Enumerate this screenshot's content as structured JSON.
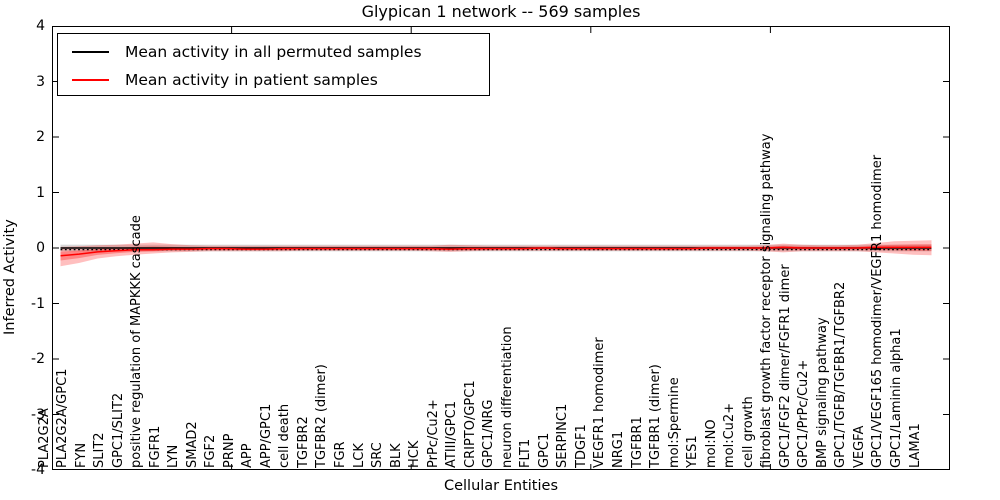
{
  "chart_data": {
    "type": "line",
    "title": "Glypican 1 network -- 569 samples",
    "xlabel": "Cellular Entities",
    "ylabel": "Inferred Activity",
    "ylim": [
      -4,
      4
    ],
    "yticks": [
      4,
      3,
      2,
      1,
      0,
      -1,
      -2,
      -3,
      -4
    ],
    "legend_position": "upper-left",
    "grid": false,
    "layout": {
      "x_tick_labels_inside": true,
      "x_tick_label_rotation": 90,
      "zero_line_dotted": true
    },
    "categories": [
      "PLA2G2A",
      "PLA2G2A/GPC1",
      "FYN",
      "SLIT2",
      "GPC1/SLIT2",
      "positive regulation of MAPKKK cascade",
      "FGFR1",
      "LYN",
      "SMAD2",
      "FGF2",
      "PRNP",
      "APP",
      "APP/GPC1",
      "cell death",
      "TGFBR2",
      "TGFBR2 (dimer)",
      "FGR",
      "LCK",
      "SRC",
      "BLK",
      "HCK",
      "PrPc/Cu2+",
      "ATIII/GPC1",
      "CRIPTO/GPC1",
      "GPC1/NRG",
      "neuron differentiation",
      "FLT1",
      "GPC1",
      "SERPINC1",
      "TDGF1",
      "VEGFR1 homodimer",
      "NRG1",
      "TGFBR1",
      "TGFBR1 (dimer)",
      "mol:Spermine",
      "YES1",
      "mol:NO",
      "mol:Cu2+",
      "cell growth",
      "fibroblast growth factor receptor signaling pathway",
      "GPC1/FGF2 dimer/FGFR1 dimer",
      "GPC1/PrPc/Cu2+",
      "BMP signaling pathway",
      "GPC1/TGFB/TGFBR1/TGFBR2",
      "VEGFA",
      "GPC1/VEGF165 homodimer/VEGFR1 homodimer",
      "GPC1/Laminin alpha1",
      "LAMA1"
    ],
    "legend": [
      {
        "label": "Mean activity in all permuted samples",
        "color": "#000000"
      },
      {
        "label": "Mean activity in patient samples",
        "color": "#ff0000"
      }
    ],
    "series": [
      {
        "name": "Mean activity in all permuted samples",
        "color": "#000000",
        "band_color": "#d4d4d4",
        "band_half_width": 0.06,
        "values": [
          0,
          0,
          0,
          0,
          0,
          0,
          0,
          0,
          0,
          0,
          0,
          0,
          0,
          0,
          0,
          0,
          0,
          0,
          0,
          0,
          0,
          0,
          0,
          0,
          0,
          0,
          0,
          0,
          0,
          0,
          0,
          0,
          0,
          0,
          0,
          0,
          0,
          0,
          0,
          0,
          0,
          0,
          0,
          0,
          0,
          0,
          0,
          0
        ]
      },
      {
        "name": "Mean activity in patient samples",
        "color": "#ff0000",
        "band_color": "#ff0000",
        "values": [
          -0.14,
          -0.11,
          -0.07,
          -0.05,
          -0.03,
          -0.03,
          -0.02,
          -0.02,
          -0.01,
          -0.01,
          -0.02,
          -0.02,
          -0.01,
          -0.01,
          -0.01,
          -0.01,
          -0.01,
          -0.01,
          -0.01,
          -0.01,
          -0.01,
          -0.02,
          -0.01,
          -0.01,
          -0.01,
          -0.01,
          0.0,
          -0.01,
          -0.01,
          -0.01,
          -0.01,
          -0.01,
          -0.01,
          -0.01,
          -0.01,
          0.0,
          0.0,
          0.0,
          0.0,
          0.01,
          0.0,
          0.0,
          0.0,
          0.0,
          0.01,
          0.01,
          0.01,
          0.01
        ],
        "band_upper": [
          0.02,
          0.03,
          0.05,
          0.06,
          0.08,
          0.1,
          0.07,
          0.05,
          0.04,
          0.04,
          0.04,
          0.04,
          0.04,
          0.04,
          0.04,
          0.04,
          0.04,
          0.04,
          0.04,
          0.04,
          0.04,
          0.06,
          0.05,
          0.04,
          0.04,
          0.04,
          0.04,
          0.04,
          0.04,
          0.04,
          0.04,
          0.04,
          0.04,
          0.04,
          0.04,
          0.04,
          0.04,
          0.04,
          0.05,
          0.08,
          0.06,
          0.05,
          0.05,
          0.06,
          0.09,
          0.12,
          0.13,
          0.14
        ],
        "band_lower": [
          -0.33,
          -0.27,
          -0.19,
          -0.15,
          -0.12,
          -0.1,
          -0.08,
          -0.07,
          -0.06,
          -0.06,
          -0.06,
          -0.06,
          -0.06,
          -0.05,
          -0.05,
          -0.05,
          -0.05,
          -0.05,
          -0.05,
          -0.05,
          -0.06,
          -0.07,
          -0.06,
          -0.05,
          -0.05,
          -0.05,
          -0.05,
          -0.05,
          -0.05,
          -0.05,
          -0.05,
          -0.05,
          -0.05,
          -0.05,
          -0.05,
          -0.05,
          -0.05,
          -0.05,
          -0.06,
          -0.08,
          -0.06,
          -0.06,
          -0.06,
          -0.06,
          -0.08,
          -0.1,
          -0.12,
          -0.13
        ]
      }
    ]
  }
}
